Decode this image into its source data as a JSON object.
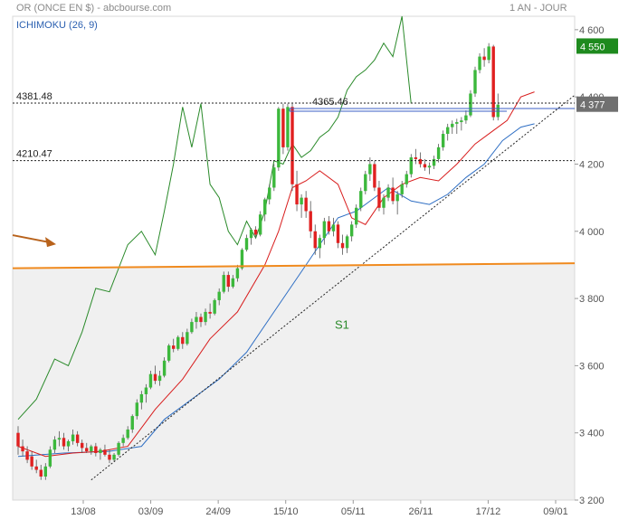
{
  "header": {
    "title": "OR (ONCE EN $) - abcbourse.com",
    "period": "1 AN - JOUR",
    "indicator": "ICHIMOKU (26, 9)"
  },
  "colors": {
    "bull": "#3cb83c",
    "bear": "#e02020",
    "tenkan": "#d81c1c",
    "kijun": "#2f6fc4",
    "chikou": "#2a8a2a",
    "support_fill": "#f0f0f0",
    "support_line": "#f08a1e",
    "arrow": "#b8621b",
    "last_badge": "#1e8a1e",
    "price_badge": "#707070"
  },
  "chart_data": {
    "type": "candlestick",
    "ylim": [
      3200,
      4640
    ],
    "y_ticks": [
      3200,
      3400,
      3600,
      3800,
      4000,
      4200,
      4400,
      4600
    ],
    "x_tick_labels": [
      "13/08",
      "03/09",
      "24/09",
      "15/10",
      "05/11",
      "26/11",
      "17/12",
      "09/01"
    ],
    "levels": [
      {
        "label": "4381.48",
        "value": 4381.48
      },
      {
        "label": "4210.47",
        "value": 4210.47
      },
      {
        "label": "4365.46",
        "value": 4365.46
      }
    ],
    "badges": [
      {
        "label": "4 550",
        "value": 4550
      },
      {
        "label": "4 377",
        "value": 4377
      }
    ],
    "support_label": "S1",
    "candles": [
      [
        3400,
        3420,
        3335,
        3360
      ],
      [
        3360,
        3380,
        3330,
        3345
      ],
      [
        3345,
        3360,
        3310,
        3320
      ],
      [
        3330,
        3345,
        3290,
        3300
      ],
      [
        3300,
        3320,
        3280,
        3290
      ],
      [
        3290,
        3305,
        3260,
        3270
      ],
      [
        3270,
        3310,
        3260,
        3300
      ],
      [
        3300,
        3360,
        3295,
        3350
      ],
      [
        3350,
        3390,
        3340,
        3380
      ],
      [
        3380,
        3405,
        3360,
        3385
      ],
      [
        3385,
        3400,
        3350,
        3360
      ],
      [
        3360,
        3380,
        3345,
        3375
      ],
      [
        3375,
        3410,
        3365,
        3395
      ],
      [
        3395,
        3405,
        3360,
        3370
      ],
      [
        3370,
        3380,
        3340,
        3355
      ],
      [
        3355,
        3370,
        3340,
        3345
      ],
      [
        3345,
        3365,
        3335,
        3360
      ],
      [
        3360,
        3370,
        3330,
        3340
      ],
      [
        3340,
        3355,
        3320,
        3350
      ],
      [
        3350,
        3365,
        3330,
        3335
      ],
      [
        3335,
        3350,
        3310,
        3320
      ],
      [
        3320,
        3340,
        3315,
        3335
      ],
      [
        3335,
        3375,
        3330,
        3370
      ],
      [
        3370,
        3395,
        3360,
        3385
      ],
      [
        3385,
        3420,
        3380,
        3410
      ],
      [
        3410,
        3455,
        3400,
        3450
      ],
      [
        3450,
        3500,
        3440,
        3490
      ],
      [
        3490,
        3525,
        3470,
        3515
      ],
      [
        3515,
        3545,
        3490,
        3535
      ],
      [
        3535,
        3585,
        3530,
        3575
      ],
      [
        3575,
        3600,
        3545,
        3555
      ],
      [
        3555,
        3585,
        3540,
        3570
      ],
      [
        3570,
        3625,
        3565,
        3615
      ],
      [
        3615,
        3665,
        3610,
        3660
      ],
      [
        3660,
        3680,
        3640,
        3650
      ],
      [
        3650,
        3690,
        3645,
        3685
      ],
      [
        3685,
        3700,
        3650,
        3665
      ],
      [
        3665,
        3710,
        3660,
        3700
      ],
      [
        3700,
        3740,
        3695,
        3730
      ],
      [
        3730,
        3760,
        3710,
        3745
      ],
      [
        3745,
        3755,
        3715,
        3730
      ],
      [
        3730,
        3770,
        3720,
        3760
      ],
      [
        3760,
        3785,
        3740,
        3755
      ],
      [
        3755,
        3800,
        3750,
        3795
      ],
      [
        3795,
        3830,
        3780,
        3820
      ],
      [
        3820,
        3880,
        3815,
        3870
      ],
      [
        3870,
        3880,
        3820,
        3835
      ],
      [
        3835,
        3870,
        3830,
        3860
      ],
      [
        3860,
        3900,
        3850,
        3890
      ],
      [
        3890,
        3950,
        3885,
        3945
      ],
      [
        3945,
        3990,
        3940,
        3980
      ],
      [
        3980,
        4010,
        3960,
        4005
      ],
      [
        4005,
        4015,
        3980,
        3990
      ],
      [
        3990,
        4060,
        3985,
        4050
      ],
      [
        4050,
        4100,
        4030,
        4095
      ],
      [
        4095,
        4140,
        4080,
        4130
      ],
      [
        4130,
        4200,
        4120,
        4190
      ],
      [
        4190,
        4370,
        4180,
        4365
      ],
      [
        4365,
        4380,
        4230,
        4250
      ],
      [
        4250,
        4380,
        4240,
        4370
      ],
      [
        4370,
        4380,
        4120,
        4140
      ],
      [
        4140,
        4180,
        4060,
        4080
      ],
      [
        4080,
        4110,
        4040,
        4100
      ],
      [
        4100,
        4120,
        4040,
        4060
      ],
      [
        4060,
        4090,
        3980,
        4000
      ],
      [
        4000,
        4020,
        3930,
        3950
      ],
      [
        3950,
        3990,
        3920,
        3980
      ],
      [
        3980,
        4040,
        3960,
        4030
      ],
      [
        4030,
        4045,
        3990,
        4000
      ],
      [
        4000,
        4040,
        3985,
        4020
      ],
      [
        4020,
        4030,
        3950,
        3965
      ],
      [
        3965,
        3990,
        3930,
        3950
      ],
      [
        3950,
        3990,
        3935,
        3985
      ],
      [
        3985,
        4030,
        3970,
        4020
      ],
      [
        4020,
        4080,
        4010,
        4070
      ],
      [
        4070,
        4130,
        4060,
        4120
      ],
      [
        4120,
        4180,
        4110,
        4170
      ],
      [
        4170,
        4220,
        4150,
        4200
      ],
      [
        4200,
        4210,
        4120,
        4130
      ],
      [
        4130,
        4150,
        4060,
        4070
      ],
      [
        4070,
        4110,
        4050,
        4100
      ],
      [
        4100,
        4140,
        4090,
        4130
      ],
      [
        4130,
        4160,
        4080,
        4090
      ],
      [
        4090,
        4120,
        4050,
        4110
      ],
      [
        4110,
        4150,
        4100,
        4140
      ],
      [
        4140,
        4180,
        4130,
        4170
      ],
      [
        4170,
        4230,
        4160,
        4220
      ],
      [
        4220,
        4245,
        4200,
        4215
      ],
      [
        4215,
        4235,
        4190,
        4200
      ],
      [
        4200,
        4215,
        4180,
        4190
      ],
      [
        4190,
        4205,
        4170,
        4195
      ],
      [
        4195,
        4225,
        4185,
        4215
      ],
      [
        4215,
        4260,
        4205,
        4250
      ],
      [
        4250,
        4300,
        4240,
        4290
      ],
      [
        4290,
        4320,
        4270,
        4310
      ],
      [
        4310,
        4330,
        4290,
        4320
      ],
      [
        4320,
        4335,
        4290,
        4325
      ],
      [
        4325,
        4340,
        4300,
        4330
      ],
      [
        4330,
        4360,
        4320,
        4345
      ],
      [
        4345,
        4420,
        4340,
        4410
      ],
      [
        4410,
        4490,
        4400,
        4480
      ],
      [
        4480,
        4530,
        4470,
        4520
      ],
      [
        4520,
        4545,
        4490,
        4510
      ],
      [
        4510,
        4560,
        4500,
        4550
      ],
      [
        4550,
        4555,
        4330,
        4340
      ],
      [
        4340,
        4410,
        4330,
        4377
      ]
    ],
    "tenkan": [
      [
        0,
        3360
      ],
      [
        6,
        3330
      ],
      [
        12,
        3340
      ],
      [
        18,
        3345
      ],
      [
        24,
        3360
      ],
      [
        30,
        3470
      ],
      [
        36,
        3560
      ],
      [
        42,
        3680
      ],
      [
        48,
        3760
      ],
      [
        54,
        3900
      ],
      [
        57,
        4000
      ],
      [
        60,
        4130
      ],
      [
        63,
        4150
      ],
      [
        66,
        4180
      ],
      [
        70,
        4140
      ],
      [
        73,
        4040
      ],
      [
        76,
        4020
      ],
      [
        80,
        4100
      ],
      [
        84,
        4140
      ],
      [
        88,
        4160
      ],
      [
        92,
        4150
      ],
      [
        96,
        4200
      ],
      [
        100,
        4260
      ],
      [
        104,
        4300
      ],
      [
        107,
        4330
      ],
      [
        110,
        4400
      ],
      [
        113,
        4415
      ]
    ],
    "kijun": [
      [
        0,
        3330
      ],
      [
        10,
        3340
      ],
      [
        20,
        3345
      ],
      [
        27,
        3360
      ],
      [
        32,
        3440
      ],
      [
        38,
        3500
      ],
      [
        44,
        3560
      ],
      [
        50,
        3640
      ],
      [
        56,
        3760
      ],
      [
        62,
        3880
      ],
      [
        66,
        3960
      ],
      [
        70,
        4040
      ],
      [
        74,
        4060
      ],
      [
        78,
        4100
      ],
      [
        81,
        4130
      ],
      [
        86,
        4090
      ],
      [
        90,
        4080
      ],
      [
        94,
        4110
      ],
      [
        98,
        4160
      ],
      [
        102,
        4200
      ],
      [
        106,
        4270
      ],
      [
        110,
        4310
      ],
      [
        113,
        4320
      ]
    ],
    "chikou": [
      [
        0,
        3440
      ],
      [
        4,
        3500
      ],
      [
        8,
        3620
      ],
      [
        11,
        3600
      ],
      [
        14,
        3700
      ],
      [
        17,
        3830
      ],
      [
        20,
        3820
      ],
      [
        24,
        3960
      ],
      [
        27,
        4000
      ],
      [
        30,
        3930
      ],
      [
        32,
        4060
      ],
      [
        34,
        4200
      ],
      [
        36,
        4370
      ],
      [
        38,
        4250
      ],
      [
        40,
        4380
      ],
      [
        42,
        4140
      ],
      [
        44,
        4100
      ],
      [
        46,
        4000
      ],
      [
        48,
        3960
      ],
      [
        50,
        4030
      ],
      [
        52,
        3980
      ],
      [
        54,
        4060
      ],
      [
        56,
        4210
      ],
      [
        58,
        4200
      ],
      [
        60,
        4260
      ],
      [
        62,
        4220
      ],
      [
        64,
        4240
      ],
      [
        66,
        4280
      ],
      [
        68,
        4300
      ],
      [
        70,
        4340
      ],
      [
        72,
        4420
      ],
      [
        74,
        4460
      ],
      [
        76,
        4480
      ],
      [
        78,
        4510
      ],
      [
        80,
        4560
      ],
      [
        82,
        4520
      ],
      [
        84,
        4640
      ],
      [
        86,
        4380
      ]
    ]
  }
}
